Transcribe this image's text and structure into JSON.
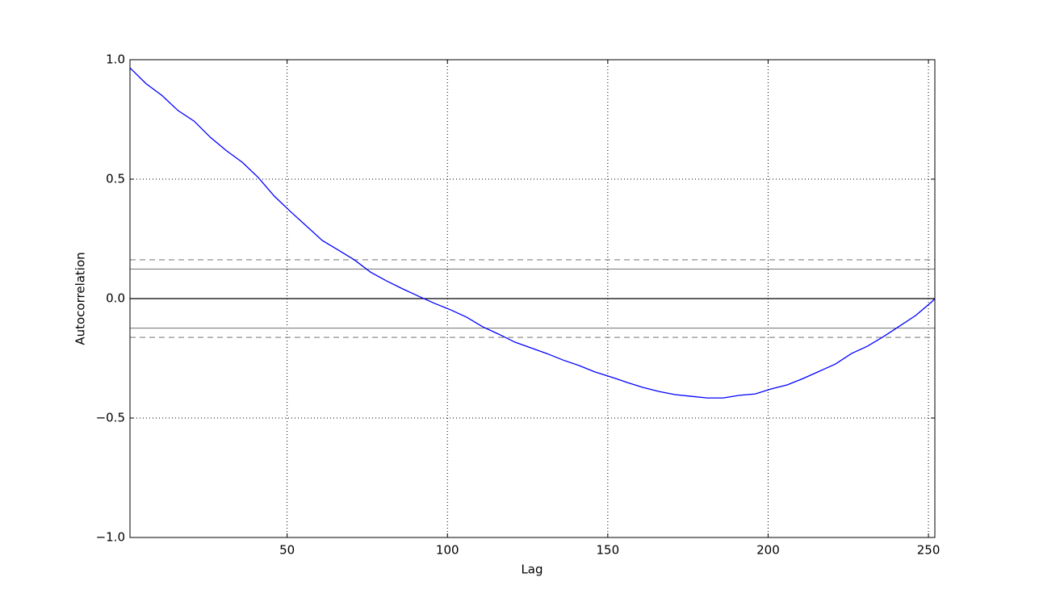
{
  "chart_data": {
    "type": "line",
    "x_label": "Lag",
    "y_label": "Autocorrelation",
    "x": [
      1,
      6,
      11,
      16,
      21,
      26,
      31,
      36,
      41,
      46,
      51,
      56,
      61,
      66,
      71,
      76,
      81,
      86,
      91,
      96,
      101,
      106,
      111,
      116,
      121,
      126,
      131,
      136,
      141,
      146,
      151,
      156,
      161,
      166,
      171,
      176,
      181,
      186,
      191,
      196,
      201,
      206,
      211,
      216,
      221,
      226,
      231,
      236,
      241,
      246,
      251,
      252
    ],
    "series": [
      {
        "color": "#0000ff",
        "values": [
          0.966,
          0.9,
          0.85,
          0.787,
          0.743,
          0.676,
          0.62,
          0.571,
          0.507,
          0.429,
          0.365,
          0.304,
          0.243,
          0.203,
          0.162,
          0.111,
          0.074,
          0.041,
          0.01,
          -0.02,
          -0.047,
          -0.078,
          -0.118,
          -0.149,
          -0.182,
          -0.206,
          -0.23,
          -0.257,
          -0.28,
          -0.307,
          -0.328,
          -0.351,
          -0.372,
          -0.389,
          -0.402,
          -0.409,
          -0.416,
          -0.416,
          -0.405,
          -0.399,
          -0.378,
          -0.361,
          -0.334,
          -0.304,
          -0.274,
          -0.23,
          -0.199,
          -0.159,
          -0.115,
          -0.071,
          -0.014,
          0.0
        ]
      }
    ],
    "hlines": [
      {
        "y": 0.1623,
        "style": "dashed",
        "color": "#808080"
      },
      {
        "y": 0.1235,
        "style": "solid",
        "color": "#808080"
      },
      {
        "y": 0,
        "style": "solid",
        "color": "#000000"
      },
      {
        "y": -0.1235,
        "style": "solid",
        "color": "#808080"
      },
      {
        "y": -0.1623,
        "style": "dashed",
        "color": "#808080"
      }
    ],
    "xlim": [
      1,
      252
    ],
    "ylim": [
      -1,
      1
    ],
    "xticks": [
      50,
      100,
      150,
      200,
      250
    ],
    "yticks": [
      {
        "value": -1,
        "label": "−1.0"
      },
      {
        "value": -0.5,
        "label": "−0.5"
      },
      {
        "value": 0,
        "label": "0.0"
      },
      {
        "value": 0.5,
        "label": "0.5"
      },
      {
        "value": 1,
        "label": "1.0"
      }
    ],
    "grid": true
  }
}
